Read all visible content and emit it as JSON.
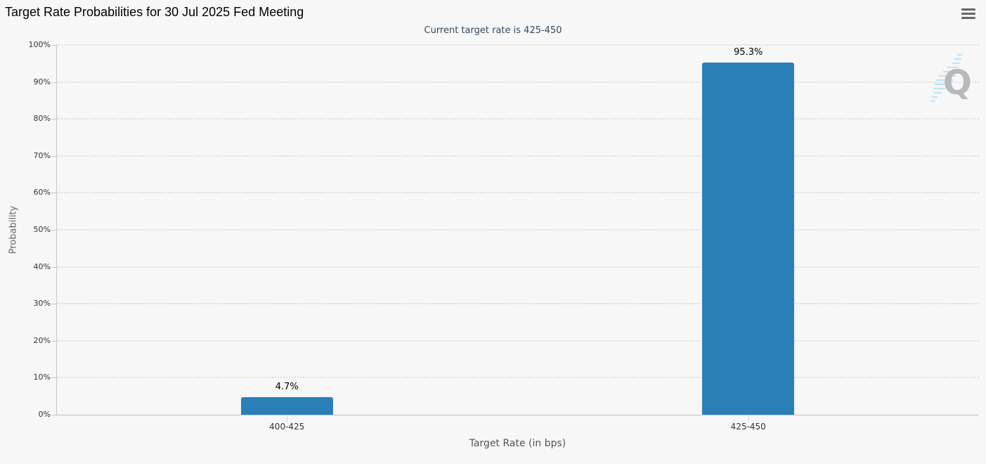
{
  "header": {
    "title": "Target Rate Probabilities for 30 Jul 2025 Fed Meeting",
    "menu_icon": "hamburger-menu-icon"
  },
  "chart_data": {
    "type": "bar",
    "title": "Target Rate Probabilities for 30 Jul 2025 Fed Meeting",
    "subtitle": "Current target rate is 425-450",
    "xlabel": "Target Rate (in bps)",
    "ylabel": "Probability",
    "categories": [
      "400-425",
      "425-450"
    ],
    "values": [
      4.7,
      95.3
    ],
    "data_labels": [
      "4.7%",
      "95.3%"
    ],
    "ylim": [
      0,
      100
    ],
    "y_ticks": [
      "0%",
      "10%",
      "20%",
      "30%",
      "40%",
      "50%",
      "60%",
      "70%",
      "80%",
      "90%",
      "100%"
    ],
    "grid": true,
    "grid_style": "dotted",
    "legend": null,
    "bar_color": "#2a7fb8"
  },
  "watermark": {
    "icon": "cme-q-logo-icon",
    "letter": "Q"
  }
}
